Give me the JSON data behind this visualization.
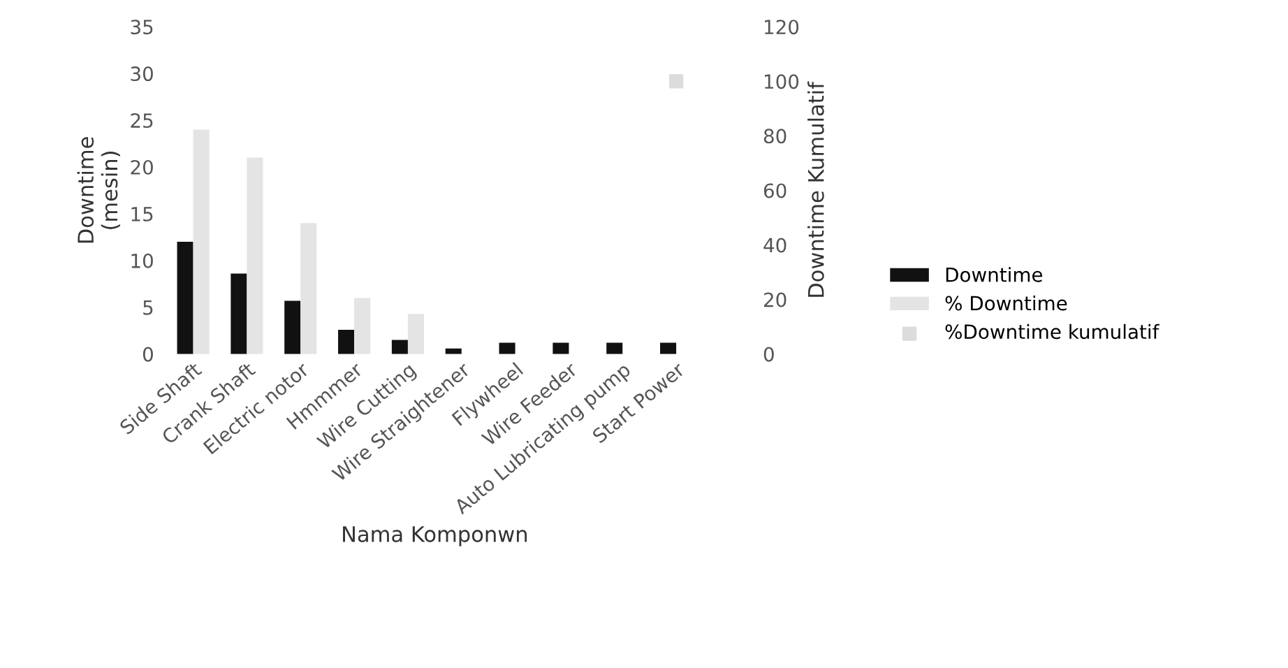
{
  "chart_data": {
    "type": "bar",
    "xlabel": "Nama Komponwn",
    "ylabel": "Downtime\n(mesin)",
    "y2label": "Downtime Kumulatif",
    "categories": [
      "Side Shaft",
      "Crank Shaft",
      "Electric notor",
      "Hmmmer",
      "Wire Cutting",
      "Wire Straightener",
      "Flywheel",
      "Wire Feeder",
      "Auto Lubricating pump",
      "Start Power"
    ],
    "series": [
      {
        "name": "Downtime",
        "color": "#111111",
        "values": [
          12,
          8.6,
          5.7,
          2.6,
          1.5,
          0.6,
          1.2,
          1.2,
          1.2,
          1.2
        ]
      },
      {
        "name": "% Downtime",
        "color": "#e4e4e4",
        "values": [
          24,
          21,
          14,
          6,
          4.3,
          null,
          null,
          null,
          null,
          null
        ]
      },
      {
        "name": "%Downtime kumulatif",
        "type": "scatter",
        "axis": "y2",
        "color": "#dcdcdc",
        "values": [
          null,
          null,
          null,
          null,
          null,
          null,
          null,
          null,
          null,
          100
        ]
      }
    ],
    "ylim": [
      0,
      35
    ],
    "yticks": [
      0,
      5,
      10,
      15,
      20,
      25,
      30,
      35
    ],
    "y2lim": [
      0,
      120
    ],
    "y2ticks": [
      0,
      20,
      40,
      60,
      80,
      100,
      120
    ],
    "grid": false,
    "legend": "right"
  }
}
